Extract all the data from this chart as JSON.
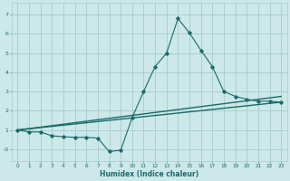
{
  "xlabel": "Humidex (Indice chaleur)",
  "background_color": "#cce8e8",
  "grid_color": "#aacaca",
  "line_color": "#1a6b6b",
  "xlim": [
    -0.5,
    23.5
  ],
  "ylim": [
    -0.6,
    7.6
  ],
  "yticks": [
    0,
    1,
    2,
    3,
    4,
    5,
    6,
    7
  ],
  "ytick_labels": [
    "-0",
    "1",
    "2",
    "3",
    "4",
    "5",
    "6",
    "7"
  ],
  "xticks": [
    0,
    1,
    2,
    3,
    4,
    5,
    6,
    7,
    8,
    9,
    10,
    11,
    12,
    13,
    14,
    15,
    16,
    17,
    18,
    19,
    20,
    21,
    22,
    23
  ],
  "line1_x": [
    0,
    1,
    2,
    3,
    4,
    5,
    6,
    7,
    8,
    9,
    10,
    11,
    12,
    13,
    14,
    15,
    16,
    17,
    18,
    19,
    20,
    21,
    22,
    23
  ],
  "line1_y": [
    1.0,
    0.9,
    0.9,
    0.7,
    0.65,
    0.62,
    0.62,
    0.58,
    -0.12,
    -0.05,
    1.65,
    3.0,
    4.3,
    5.0,
    6.8,
    6.05,
    5.15,
    4.3,
    3.0,
    2.75,
    2.6,
    2.5,
    2.5,
    2.45
  ],
  "line2_x": [
    0,
    23
  ],
  "line2_y": [
    1.0,
    2.45
  ],
  "line3_x": [
    0,
    23
  ],
  "line3_y": [
    1.0,
    2.75
  ]
}
